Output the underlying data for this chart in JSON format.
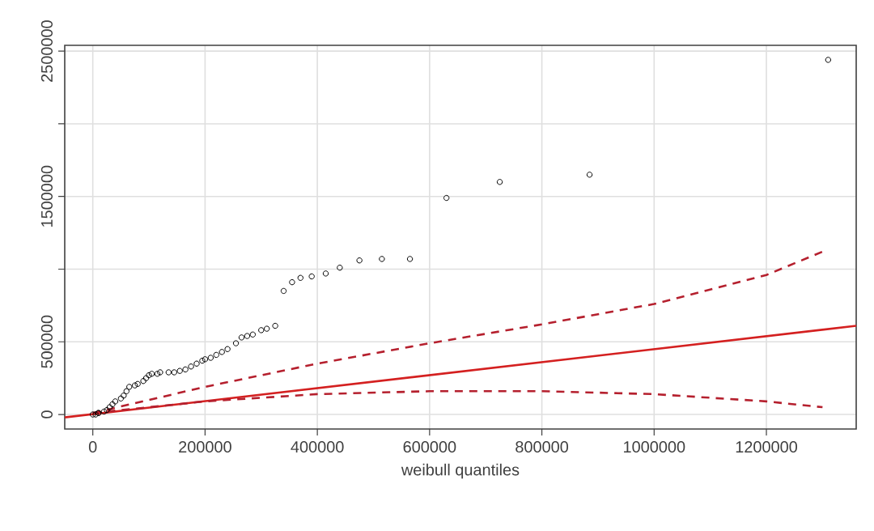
{
  "chart_data": {
    "type": "scatter",
    "xlabel": "weibull quantiles",
    "xlim": [
      -50000,
      1360000
    ],
    "ylim": [
      -100000,
      2540000
    ],
    "xticks": [
      0,
      200000,
      400000,
      600000,
      800000,
      1000000,
      1200000
    ],
    "yticks": [
      0,
      500000,
      {
        "value": 1000000,
        "label": null
      },
      1500000,
      {
        "value": 2000000,
        "label": null
      },
      2500000
    ],
    "grid": true,
    "series": [
      {
        "marker": "circle",
        "color": "#000000",
        "x": [
          0,
          5000,
          10000,
          10000,
          20000,
          25000,
          30000,
          35000,
          40000,
          50000,
          55000,
          60000,
          65000,
          75000,
          80000,
          90000,
          95000,
          100000,
          105000,
          115000,
          120000,
          135000,
          145000,
          155000,
          165000,
          175000,
          185000,
          195000,
          200000,
          210000,
          220000,
          230000,
          240000,
          255000,
          265000,
          275000,
          285000,
          300000,
          310000,
          325000,
          340000,
          355000,
          370000,
          390000,
          415000,
          440000,
          475000,
          515000,
          565000,
          630000,
          725000,
          885000,
          1310000
        ],
        "values": [
          0,
          0,
          10000,
          10000,
          20000,
          30000,
          50000,
          70000,
          90000,
          110000,
          130000,
          160000,
          190000,
          200000,
          210000,
          230000,
          250000,
          270000,
          280000,
          280000,
          290000,
          290000,
          290000,
          300000,
          310000,
          330000,
          350000,
          370000,
          380000,
          390000,
          410000,
          430000,
          450000,
          490000,
          530000,
          540000,
          550000,
          580000,
          590000,
          610000,
          850000,
          910000,
          940000,
          950000,
          970000,
          1010000,
          1060000,
          1070000,
          1070000,
          1490000,
          1600000,
          1650000,
          2440000
        ]
      },
      {
        "type": "line",
        "line_style": "solid",
        "color": "#d42020",
        "x": [
          -50000,
          1360000
        ],
        "values": [
          -20000,
          610000
        ]
      },
      {
        "type": "line",
        "line_style": "dashed",
        "color": "#b5202e",
        "x": [
          0,
          200000,
          400000,
          600000,
          800000,
          1000000,
          1200000,
          1300000
        ],
        "values": [
          10000,
          190000,
          350000,
          490000,
          620000,
          760000,
          960000,
          1120000
        ]
      },
      {
        "type": "line",
        "line_style": "dashed",
        "color": "#b5202e",
        "x": [
          0,
          200000,
          400000,
          600000,
          800000,
          1000000,
          1200000,
          1300000
        ],
        "values": [
          10000,
          90000,
          140000,
          160000,
          160000,
          140000,
          90000,
          50000
        ]
      }
    ]
  }
}
